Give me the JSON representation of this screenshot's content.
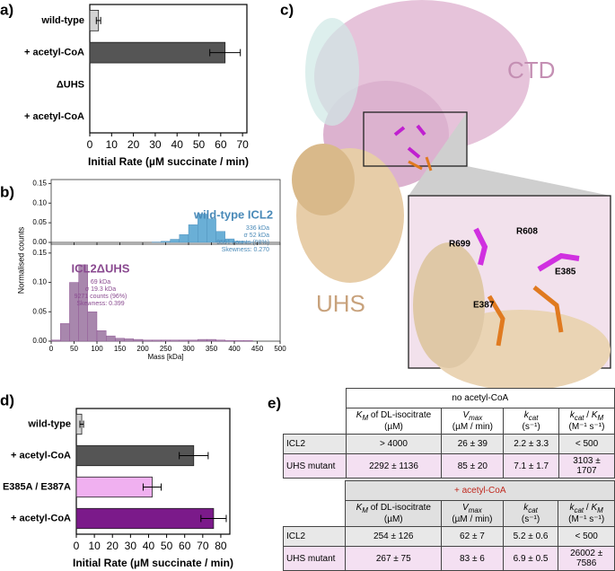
{
  "chart_data": [
    {
      "type": "hbar",
      "label": "a)",
      "xlabel": "Initial Rate (µM succinate / min)",
      "categories": [
        "wild-type",
        "+ acetyl-CoA",
        "ΔUHS",
        "+ acetyl-CoA"
      ],
      "values": [
        4,
        62,
        0,
        0
      ],
      "errors": [
        1,
        7,
        0,
        0
      ],
      "colors": [
        "#d3d3d3",
        "#555555",
        "#d090e0",
        "#9b30c0"
      ],
      "xlim": [
        0,
        72
      ],
      "xticks": [
        0,
        10,
        20,
        30,
        40,
        50,
        60,
        70
      ]
    },
    {
      "type": "histogram",
      "label": "b)",
      "xlabel": "Mass [kDa]",
      "ylabel": "Normalised counts",
      "bins": [
        0,
        20,
        40,
        60,
        80,
        100,
        120,
        140,
        160,
        180,
        200,
        220,
        240,
        260,
        280,
        300,
        320,
        340,
        360,
        380,
        400,
        420,
        440,
        460,
        480,
        500
      ],
      "xlim": [
        0,
        500
      ],
      "xticks": [
        0,
        50,
        100,
        150,
        200,
        250,
        300,
        350,
        400,
        450,
        500
      ],
      "series": [
        {
          "name": "wild-type ICL2",
          "color": "#6aafd6",
          "text_color": "#4a8ab8",
          "values": [
            0,
            0,
            0,
            0,
            0,
            0,
            0,
            0,
            0,
            0,
            0,
            0.001,
            0.003,
            0.008,
            0.02,
            0.045,
            0.072,
            0.06,
            0.028,
            0.009,
            0.003,
            0.001,
            0,
            0,
            0
          ],
          "annotations": [
            "336 kDa",
            "σ 52 kDa",
            "9591 counts (98%)",
            "Skewness: 0.270"
          ],
          "ylim": [
            0,
            0.16
          ],
          "yticks": [
            {
              "value": 0,
              "label": "0.00"
            },
            {
              "value": 0.05,
              "label": "0.05"
            },
            {
              "value": 0.1,
              "label": "0.10"
            },
            {
              "value": 0.15,
              "label": "0.15"
            }
          ]
        },
        {
          "name": "ICL2ΔUHS",
          "color": "#a887ad",
          "text_color": "#8a4a90",
          "values": [
            0.002,
            0.03,
            0.1,
            0.13,
            0.05,
            0.018,
            0.009,
            0.005,
            0.004,
            0.003,
            0.002,
            0.002,
            0.002,
            0.002,
            0.002,
            0.002,
            0.003,
            0.003,
            0.002,
            0.001,
            0.001,
            0.001,
            0,
            0,
            0
          ],
          "annotations": [
            "69 kDa",
            "σ 19.3 kDa",
            "9271 counts (96%)",
            "Skewness: 0.399"
          ],
          "ylim": [
            0,
            0.165
          ],
          "yticks": [
            {
              "value": 0,
              "label": "0.00"
            },
            {
              "value": 0.05,
              "label": "0.05"
            },
            {
              "value": 0.1,
              "label": "0.10"
            },
            {
              "value": 0.15,
              "label": "0.15"
            }
          ]
        }
      ]
    },
    {
      "type": "hbar",
      "label": "d)",
      "xlabel": "Initial Rate (µM succinate / min)",
      "categories": [
        "wild-type",
        "+ acetyl-CoA",
        "E385A / E387A",
        "+ acetyl-CoA"
      ],
      "values": [
        3,
        65,
        42,
        76
      ],
      "errors": [
        1,
        8,
        5,
        7
      ],
      "colors": [
        "#d3d3d3",
        "#555555",
        "#f0b0f0",
        "#7b1a8a"
      ],
      "xlim": [
        0,
        85
      ],
      "xticks": [
        0,
        10,
        20,
        30,
        40,
        50,
        60,
        70,
        80
      ]
    }
  ],
  "structure_image": {
    "label": "c)",
    "domains": [
      "CTD",
      "UHS"
    ],
    "residues": [
      "R699",
      "R608",
      "E387",
      "E385"
    ]
  },
  "kinetics_table": {
    "label": "e)",
    "columns": [
      {
        "symbol": "K",
        "subscript": "M",
        "text": " of DL-isocitrate",
        "unit": "(µM)"
      },
      {
        "symbol": "V",
        "subscript": "max",
        "unit": "(µM / min)"
      },
      {
        "symbol": "k",
        "subscript": "cat",
        "unit": "(s⁻¹)"
      },
      {
        "symbol": "k",
        "subscript": "cat",
        "text": " / ",
        "symbol2": "K",
        "subscript2": "M",
        "unit": "(M⁻¹ s⁻¹)"
      }
    ],
    "tables": [
      {
        "condition": "no acetyl-CoA",
        "condition_color": "#000000",
        "header_fill": "#ffffff",
        "rows": [
          [
            "ICL2",
            "> 4000",
            "26 ± 39",
            "2.2 ± 3.3",
            "< 500"
          ],
          [
            "UHS mutant",
            "2292 ± 1136",
            "85 ± 20",
            "7.1 ± 1.7",
            "3103 ± 1707"
          ]
        ]
      },
      {
        "condition": "+ acetyl-CoA",
        "condition_color": "#c0281e",
        "header_fill": "#e0e0e0",
        "rows": [
          [
            "ICL2",
            "254 ± 126",
            "62 ± 7",
            "5.2 ± 0.6",
            "< 500"
          ],
          [
            "UHS mutant",
            "267 ± 75",
            "83 ± 6",
            "6.9 ± 0.5",
            "26002 ± 7586"
          ]
        ]
      }
    ]
  }
}
